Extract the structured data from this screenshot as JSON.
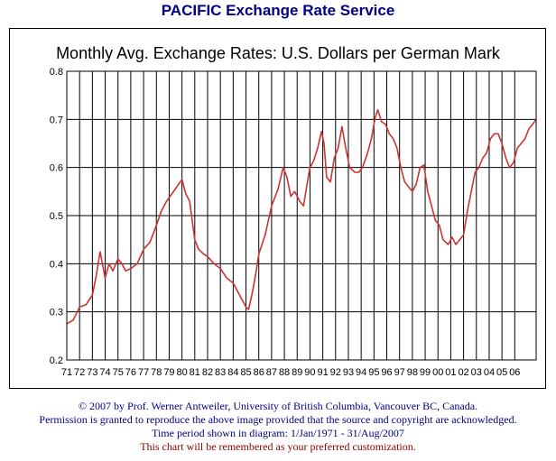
{
  "header": {
    "title": "PACIFIC Exchange Rate Service"
  },
  "chart_data": {
    "type": "line",
    "title": "Monthly Avg. Exchange Rates: U.S. Dollars per German Mark",
    "xlabel": "",
    "ylabel": "",
    "ylim": [
      0.2,
      0.8
    ],
    "yticks": [
      "0.2",
      "0.3",
      "0.4",
      "0.5",
      "0.6",
      "0.7",
      "0.8"
    ],
    "xlim": [
      1971.0,
      2007.67
    ],
    "xtick_labels": [
      "71",
      "72",
      "73",
      "74",
      "75",
      "76",
      "77",
      "78",
      "79",
      "80",
      "81",
      "82",
      "83",
      "84",
      "85",
      "86",
      "87",
      "88",
      "89",
      "90",
      "91",
      "92",
      "93",
      "94",
      "95",
      "96",
      "97",
      "98",
      "99",
      "00",
      "01",
      "02",
      "03",
      "04",
      "05",
      "06"
    ],
    "grid": true,
    "line_color": "#cc3333",
    "series": [
      {
        "x": [
          1971.0,
          1971.5,
          1972.0,
          1972.5,
          1973.0,
          1973.3,
          1973.6,
          1974.0,
          1974.3,
          1974.6,
          1975.0,
          1975.3,
          1975.6,
          1976.0,
          1976.5,
          1977.0,
          1977.5,
          1978.0,
          1978.4,
          1978.8,
          1979.2,
          1979.6,
          1980.0,
          1980.3,
          1980.6,
          1981.0,
          1981.3,
          1981.7,
          1982.0,
          1982.5,
          1983.0,
          1983.5,
          1984.0,
          1984.5,
          1985.0,
          1985.2,
          1985.5,
          1985.8,
          1986.0,
          1986.5,
          1987.0,
          1987.5,
          1987.9,
          1988.2,
          1988.5,
          1988.8,
          1989.2,
          1989.5,
          1989.8,
          1990.0,
          1990.3,
          1990.6,
          1990.9,
          1991.1,
          1991.3,
          1991.6,
          1991.9,
          1992.2,
          1992.5,
          1992.8,
          1993.1,
          1993.5,
          1993.8,
          1994.1,
          1994.5,
          1994.8,
          1995.1,
          1995.3,
          1995.6,
          1995.9,
          1996.2,
          1996.5,
          1996.8,
          1997.1,
          1997.4,
          1997.7,
          1998.0,
          1998.3,
          1998.6,
          1998.9,
          1999.2,
          1999.5,
          1999.8,
          2000.1,
          2000.4,
          2000.8,
          2001.1,
          2001.4,
          2001.7,
          2002.0,
          2002.3,
          2002.6,
          2002.9,
          2003.2,
          2003.5,
          2003.8,
          2004.1,
          2004.4,
          2004.7,
          2005.0,
          2005.3,
          2005.6,
          2005.9,
          2006.2,
          2006.5,
          2006.8,
          2007.1,
          2007.4,
          2007.67
        ],
        "y": [
          0.275,
          0.283,
          0.31,
          0.315,
          0.335,
          0.375,
          0.425,
          0.37,
          0.4,
          0.385,
          0.41,
          0.4,
          0.385,
          0.39,
          0.4,
          0.43,
          0.445,
          0.48,
          0.51,
          0.53,
          0.545,
          0.56,
          0.575,
          0.545,
          0.53,
          0.45,
          0.43,
          0.42,
          0.415,
          0.4,
          0.39,
          0.37,
          0.36,
          0.335,
          0.31,
          0.305,
          0.34,
          0.385,
          0.42,
          0.46,
          0.52,
          0.555,
          0.6,
          0.58,
          0.54,
          0.55,
          0.53,
          0.52,
          0.57,
          0.6,
          0.615,
          0.64,
          0.675,
          0.65,
          0.58,
          0.57,
          0.62,
          0.64,
          0.685,
          0.64,
          0.6,
          0.59,
          0.59,
          0.6,
          0.63,
          0.66,
          0.705,
          0.72,
          0.695,
          0.69,
          0.67,
          0.66,
          0.64,
          0.6,
          0.57,
          0.56,
          0.55,
          0.565,
          0.6,
          0.605,
          0.55,
          0.52,
          0.49,
          0.48,
          0.45,
          0.44,
          0.455,
          0.44,
          0.45,
          0.46,
          0.51,
          0.55,
          0.59,
          0.6,
          0.62,
          0.63,
          0.66,
          0.67,
          0.67,
          0.65,
          0.62,
          0.6,
          0.61,
          0.64,
          0.65,
          0.66,
          0.68,
          0.69,
          0.7
        ]
      }
    ]
  },
  "footer": {
    "copyright": "© 2007 by Prof. Werner Antweiler, University of British Columbia, Vancouver BC, Canada.",
    "permission": "Permission is granted to reproduce the above image provided that the source and copyright are acknowledged.",
    "period": "Time period shown in diagram: 1/Jan/1971 - 31/Aug/2007",
    "customization": "This chart will be remembered as your preferred customization."
  }
}
